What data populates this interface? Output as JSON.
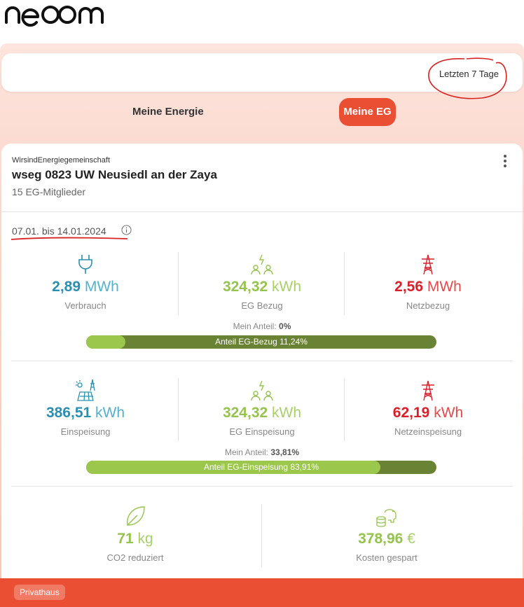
{
  "brand": {
    "logo": "neoom",
    "accent": "#ea4e33"
  },
  "period": {
    "label": "Letzten 7 Tage"
  },
  "tabs": [
    {
      "label": "Meine Energie",
      "active": false
    },
    {
      "label": "Meine EG",
      "active": true
    }
  ],
  "community": {
    "org": "WirsindEnergiegemeinschaft",
    "name": "wseg 0823 UW Neusiedl an der Zaya",
    "members": "15 EG-Mitglieder",
    "date_range": "07.01. bis 14.01.2024"
  },
  "consumption": {
    "verbrauch": {
      "value": "2,89",
      "unit": "MWh",
      "label": "Verbrauch",
      "icon": "plug-icon"
    },
    "eg_bezug": {
      "value": "324,32",
      "unit": "kWh",
      "label": "EG Bezug",
      "icon": "community-icon"
    },
    "netzbezug": {
      "value": "2,56",
      "unit": "MWh",
      "label": "Netzbezug",
      "icon": "power-tower-icon"
    },
    "share_label": "Mein Anteil:",
    "share_value": "0%",
    "bar_label": "Anteil EG-Bezug 11,24%",
    "bar_fraction": 0.1124
  },
  "feedin": {
    "einspeisung": {
      "value": "386,51",
      "unit": "kWh",
      "label": "Einspeisung",
      "icon": "solar-panel-icon"
    },
    "eg_einspeisung": {
      "value": "324,32",
      "unit": "kWh",
      "label": "EG Einspeisung",
      "icon": "community-icon"
    },
    "netzeinspeisung": {
      "value": "62,19",
      "unit": "kWh",
      "label": "Netzeinspeisung",
      "icon": "power-tower-icon"
    },
    "share_label": "Mein Anteil:",
    "share_value": "33,81%",
    "bar_label": "Anteil EG-Einspeisung 83,91%",
    "bar_fraction": 0.8391
  },
  "savings": {
    "co2": {
      "value": "71",
      "unit": "kg",
      "label": "CO2 reduziert",
      "icon": "leaf-icon"
    },
    "kosten": {
      "value": "378,96",
      "unit": "€",
      "label": "Kosten gespart",
      "icon": "piggy-bank-icon"
    }
  },
  "footer": {
    "badge": "Privathaus"
  }
}
